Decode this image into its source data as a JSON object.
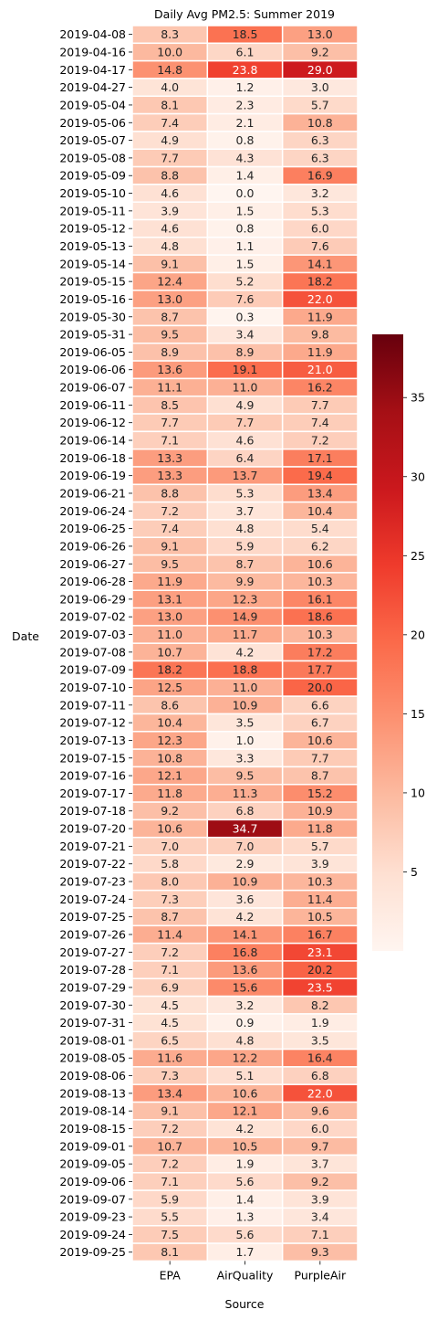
{
  "chart_data": {
    "type": "heatmap",
    "title": "Daily Avg PM2.5: Summer 2019",
    "xlabel": "Source",
    "ylabel": "Date",
    "columns": [
      "EPA",
      "AirQuality",
      "PurpleAir"
    ],
    "rows": [
      {
        "date": "2019-04-08",
        "values": [
          8.3,
          18.5,
          13.0
        ],
        "labels": [
          "8.3",
          "18.5",
          "13.0"
        ]
      },
      {
        "date": "2019-04-16",
        "values": [
          10.0,
          6.1,
          9.2
        ],
        "labels": [
          "10.0",
          "6.1",
          "9.2"
        ]
      },
      {
        "date": "2019-04-17",
        "values": [
          14.8,
          23.8,
          29.0
        ],
        "labels": [
          "14.8",
          "23.8",
          "29.0"
        ]
      },
      {
        "date": "2019-04-27",
        "values": [
          4.0,
          1.2,
          3.0
        ],
        "labels": [
          "4.0",
          "1.2",
          "3.0"
        ]
      },
      {
        "date": "2019-05-04",
        "values": [
          8.1,
          2.3,
          5.7
        ],
        "labels": [
          "8.1",
          "2.3",
          "5.7"
        ]
      },
      {
        "date": "2019-05-06",
        "values": [
          7.4,
          2.1,
          10.8
        ],
        "labels": [
          "7.4",
          "2.1",
          "10.8"
        ]
      },
      {
        "date": "2019-05-07",
        "values": [
          4.9,
          0.8,
          6.3
        ],
        "labels": [
          "4.9",
          "0.8",
          "6.3"
        ]
      },
      {
        "date": "2019-05-08",
        "values": [
          7.7,
          4.3,
          6.3
        ],
        "labels": [
          "7.7",
          "4.3",
          "6.3"
        ]
      },
      {
        "date": "2019-05-09",
        "values": [
          8.8,
          1.4,
          16.9
        ],
        "labels": [
          "8.8",
          "1.4",
          "16.9"
        ]
      },
      {
        "date": "2019-05-10",
        "values": [
          4.6,
          0.0,
          3.2
        ],
        "labels": [
          "4.6",
          "0.0",
          "3.2"
        ]
      },
      {
        "date": "2019-05-11",
        "values": [
          3.9,
          1.5,
          5.3
        ],
        "labels": [
          "3.9",
          "1.5",
          "5.3"
        ]
      },
      {
        "date": "2019-05-12",
        "values": [
          4.6,
          0.8,
          6.0
        ],
        "labels": [
          "4.6",
          "0.8",
          "6.0"
        ]
      },
      {
        "date": "2019-05-13",
        "values": [
          4.8,
          1.1,
          7.6
        ],
        "labels": [
          "4.8",
          "1.1",
          "7.6"
        ]
      },
      {
        "date": "2019-05-14",
        "values": [
          9.1,
          1.5,
          14.1
        ],
        "labels": [
          "9.1",
          "1.5",
          "14.1"
        ]
      },
      {
        "date": "2019-05-15",
        "values": [
          12.4,
          5.2,
          18.2
        ],
        "labels": [
          "12.4",
          "5.2",
          "18.2"
        ]
      },
      {
        "date": "2019-05-16",
        "values": [
          13.0,
          7.6,
          22.0
        ],
        "labels": [
          "13.0",
          "7.6",
          "22.0"
        ]
      },
      {
        "date": "2019-05-30",
        "values": [
          8.7,
          0.3,
          11.9
        ],
        "labels": [
          "8.7",
          "0.3",
          "11.9"
        ]
      },
      {
        "date": "2019-05-31",
        "values": [
          9.5,
          3.4,
          9.8
        ],
        "labels": [
          "9.5",
          "3.4",
          "9.8"
        ]
      },
      {
        "date": "2019-06-05",
        "values": [
          8.9,
          8.9,
          11.9
        ],
        "labels": [
          "8.9",
          "8.9",
          "11.9"
        ]
      },
      {
        "date": "2019-06-06",
        "values": [
          13.6,
          19.1,
          21.0
        ],
        "labels": [
          "13.6",
          "19.1",
          "21.0"
        ]
      },
      {
        "date": "2019-06-07",
        "values": [
          11.1,
          11.0,
          16.2
        ],
        "labels": [
          "11.1",
          "11.0",
          "16.2"
        ]
      },
      {
        "date": "2019-06-11",
        "values": [
          8.5,
          4.9,
          7.7
        ],
        "labels": [
          "8.5",
          "4.9",
          "7.7"
        ]
      },
      {
        "date": "2019-06-12",
        "values": [
          7.7,
          7.7,
          7.4
        ],
        "labels": [
          "7.7",
          "7.7",
          "7.4"
        ]
      },
      {
        "date": "2019-06-14",
        "values": [
          7.1,
          4.6,
          7.2
        ],
        "labels": [
          "7.1",
          "4.6",
          "7.2"
        ]
      },
      {
        "date": "2019-06-18",
        "values": [
          13.3,
          6.4,
          17.1
        ],
        "labels": [
          "13.3",
          "6.4",
          "17.1"
        ]
      },
      {
        "date": "2019-06-19",
        "values": [
          13.3,
          13.7,
          19.4
        ],
        "labels": [
          "13.3",
          "13.7",
          "19.4"
        ]
      },
      {
        "date": "2019-06-21",
        "values": [
          8.8,
          5.3,
          13.4
        ],
        "labels": [
          "8.8",
          "5.3",
          "13.4"
        ]
      },
      {
        "date": "2019-06-24",
        "values": [
          7.2,
          3.7,
          10.4
        ],
        "labels": [
          "7.2",
          "3.7",
          "10.4"
        ]
      },
      {
        "date": "2019-06-25",
        "values": [
          7.4,
          4.8,
          5.4
        ],
        "labels": [
          "7.4",
          "4.8",
          "5.4"
        ]
      },
      {
        "date": "2019-06-26",
        "values": [
          9.1,
          5.9,
          6.2
        ],
        "labels": [
          "9.1",
          "5.9",
          "6.2"
        ]
      },
      {
        "date": "2019-06-27",
        "values": [
          9.5,
          8.7,
          10.6
        ],
        "labels": [
          "9.5",
          "8.7",
          "10.6"
        ]
      },
      {
        "date": "2019-06-28",
        "values": [
          11.9,
          9.9,
          10.3
        ],
        "labels": [
          "11.9",
          "9.9",
          "10.3"
        ]
      },
      {
        "date": "2019-06-29",
        "values": [
          13.1,
          12.3,
          16.1
        ],
        "labels": [
          "13.1",
          "12.3",
          "16.1"
        ]
      },
      {
        "date": "2019-07-02",
        "values": [
          13.0,
          14.9,
          18.6
        ],
        "labels": [
          "13.0",
          "14.9",
          "18.6"
        ]
      },
      {
        "date": "2019-07-03",
        "values": [
          11.0,
          11.7,
          10.3
        ],
        "labels": [
          "11.0",
          "11.7",
          "10.3"
        ]
      },
      {
        "date": "2019-07-08",
        "values": [
          10.7,
          4.2,
          17.2
        ],
        "labels": [
          "10.7",
          "4.2",
          "17.2"
        ]
      },
      {
        "date": "2019-07-09",
        "values": [
          18.2,
          18.8,
          17.7
        ],
        "labels": [
          "18.2",
          "18.8",
          "17.7"
        ]
      },
      {
        "date": "2019-07-10",
        "values": [
          12.5,
          11.0,
          20.0
        ],
        "labels": [
          "12.5",
          "11.0",
          "20.0"
        ]
      },
      {
        "date": "2019-07-11",
        "values": [
          8.6,
          10.9,
          6.6
        ],
        "labels": [
          "8.6",
          "10.9",
          "6.6"
        ]
      },
      {
        "date": "2019-07-12",
        "values": [
          10.4,
          3.5,
          6.7
        ],
        "labels": [
          "10.4",
          "3.5",
          "6.7"
        ]
      },
      {
        "date": "2019-07-13",
        "values": [
          12.3,
          1.0,
          10.6
        ],
        "labels": [
          "12.3",
          "1.0",
          "10.6"
        ]
      },
      {
        "date": "2019-07-15",
        "values": [
          10.8,
          3.3,
          7.7
        ],
        "labels": [
          "10.8",
          "3.3",
          "7.7"
        ]
      },
      {
        "date": "2019-07-16",
        "values": [
          12.1,
          9.5,
          8.7
        ],
        "labels": [
          "12.1",
          "9.5",
          "8.7"
        ]
      },
      {
        "date": "2019-07-17",
        "values": [
          11.8,
          11.3,
          15.2
        ],
        "labels": [
          "11.8",
          "11.3",
          "15.2"
        ]
      },
      {
        "date": "2019-07-18",
        "values": [
          9.2,
          6.8,
          10.9
        ],
        "labels": [
          "9.2",
          "6.8",
          "10.9"
        ]
      },
      {
        "date": "2019-07-20",
        "values": [
          10.6,
          34.7,
          11.8
        ],
        "labels": [
          "10.6",
          "34.7",
          "11.8"
        ]
      },
      {
        "date": "2019-07-21",
        "values": [
          7.0,
          7.0,
          5.7
        ],
        "labels": [
          "7.0",
          "7.0",
          "5.7"
        ]
      },
      {
        "date": "2019-07-22",
        "values": [
          5.8,
          2.9,
          3.9
        ],
        "labels": [
          "5.8",
          "2.9",
          "3.9"
        ]
      },
      {
        "date": "2019-07-23",
        "values": [
          8.0,
          10.9,
          10.3
        ],
        "labels": [
          "8.0",
          "10.9",
          "10.3"
        ]
      },
      {
        "date": "2019-07-24",
        "values": [
          7.3,
          3.6,
          11.4
        ],
        "labels": [
          "7.3",
          "3.6",
          "11.4"
        ]
      },
      {
        "date": "2019-07-25",
        "values": [
          8.7,
          4.2,
          10.5
        ],
        "labels": [
          "8.7",
          "4.2",
          "10.5"
        ]
      },
      {
        "date": "2019-07-26",
        "values": [
          11.4,
          14.1,
          16.7
        ],
        "labels": [
          "11.4",
          "14.1",
          "16.7"
        ]
      },
      {
        "date": "2019-07-27",
        "values": [
          7.2,
          16.8,
          23.1
        ],
        "labels": [
          "7.2",
          "16.8",
          "23.1"
        ]
      },
      {
        "date": "2019-07-28",
        "values": [
          7.1,
          13.6,
          20.2
        ],
        "labels": [
          "7.1",
          "13.6",
          "20.2"
        ]
      },
      {
        "date": "2019-07-29",
        "values": [
          6.9,
          15.6,
          23.5
        ],
        "labels": [
          "6.9",
          "15.6",
          "23.5"
        ]
      },
      {
        "date": "2019-07-30",
        "values": [
          4.5,
          3.2,
          8.2
        ],
        "labels": [
          "4.5",
          "3.2",
          "8.2"
        ]
      },
      {
        "date": "2019-07-31",
        "values": [
          4.5,
          0.9,
          1.9
        ],
        "labels": [
          "4.5",
          "0.9",
          "1.9"
        ]
      },
      {
        "date": "2019-08-01",
        "values": [
          6.5,
          4.8,
          3.5
        ],
        "labels": [
          "6.5",
          "4.8",
          "3.5"
        ]
      },
      {
        "date": "2019-08-05",
        "values": [
          11.6,
          12.2,
          16.4
        ],
        "labels": [
          "11.6",
          "12.2",
          "16.4"
        ]
      },
      {
        "date": "2019-08-06",
        "values": [
          7.3,
          5.1,
          6.8
        ],
        "labels": [
          "7.3",
          "5.1",
          "6.8"
        ]
      },
      {
        "date": "2019-08-13",
        "values": [
          13.4,
          10.6,
          22.0
        ],
        "labels": [
          "13.4",
          "10.6",
          "22.0"
        ]
      },
      {
        "date": "2019-08-14",
        "values": [
          9.1,
          12.1,
          9.6
        ],
        "labels": [
          "9.1",
          "12.1",
          "9.6"
        ]
      },
      {
        "date": "2019-08-15",
        "values": [
          7.2,
          4.2,
          6.0
        ],
        "labels": [
          "7.2",
          "4.2",
          "6.0"
        ]
      },
      {
        "date": "2019-09-01",
        "values": [
          10.7,
          10.5,
          9.7
        ],
        "labels": [
          "10.7",
          "10.5",
          "9.7"
        ]
      },
      {
        "date": "2019-09-05",
        "values": [
          7.2,
          1.9,
          3.7
        ],
        "labels": [
          "7.2",
          "1.9",
          "3.7"
        ]
      },
      {
        "date": "2019-09-06",
        "values": [
          7.1,
          5.6,
          9.2
        ],
        "labels": [
          "7.1",
          "5.6",
          "9.2"
        ]
      },
      {
        "date": "2019-09-07",
        "values": [
          5.9,
          1.4,
          3.9
        ],
        "labels": [
          "5.9",
          "1.4",
          "3.9"
        ]
      },
      {
        "date": "2019-09-23",
        "values": [
          5.5,
          1.3,
          3.4
        ],
        "labels": [
          "5.5",
          "1.3",
          "3.4"
        ]
      },
      {
        "date": "2019-09-24",
        "values": [
          7.5,
          5.6,
          7.1
        ],
        "labels": [
          "7.5",
          "5.6",
          "7.1"
        ]
      },
      {
        "date": "2019-09-25",
        "values": [
          8.1,
          1.7,
          9.3
        ],
        "labels": [
          "8.1",
          "1.7",
          "9.3"
        ]
      }
    ],
    "colorbar": {
      "min": 0.0,
      "max": 39.0,
      "ticks": [
        5,
        10,
        15,
        20,
        25,
        30,
        35
      ],
      "tick_labels": [
        "5",
        "10",
        "15",
        "20",
        "25",
        "30",
        "35"
      ],
      "colormap": "Reds"
    },
    "colormap_stops": [
      "#fff5f0",
      "#fee0d2",
      "#fcbba1",
      "#fc9272",
      "#fb6a4a",
      "#ef3b2c",
      "#cb181d",
      "#a50f15",
      "#67000d"
    ]
  }
}
